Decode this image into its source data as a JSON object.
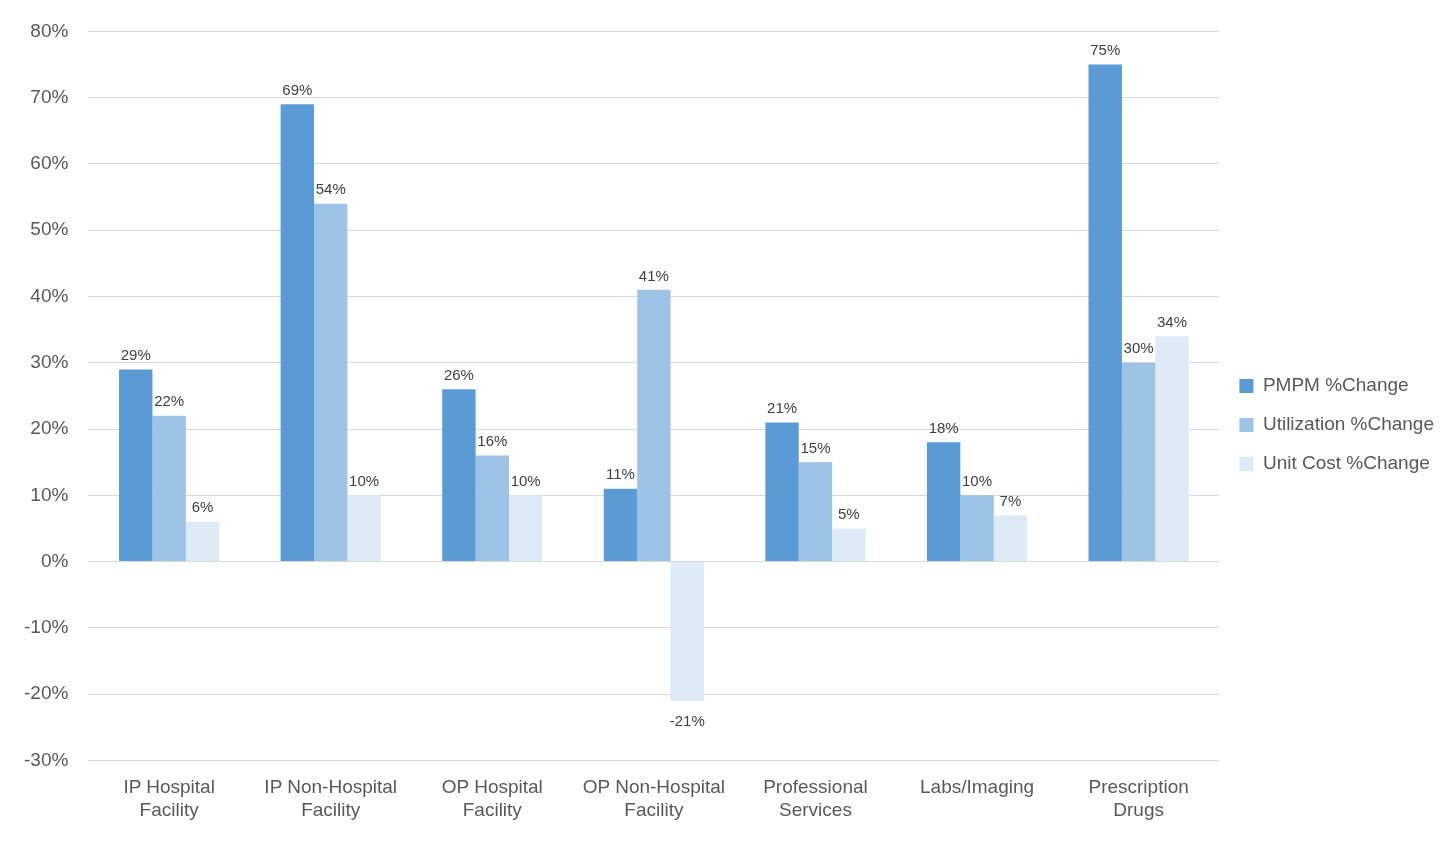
{
  "chart_data": {
    "type": "bar",
    "categories": [
      "IP Hospital Facility",
      "IP Non-Hospital Facility",
      "OP Hospital Facility",
      "OP Non-Hospital Facility",
      "Professional Services",
      "Labs/Imaging",
      "Prescription Drugs"
    ],
    "series": [
      {
        "name": "PMPM %Change",
        "color": "#5b9bd5",
        "values": [
          29,
          69,
          26,
          11,
          21,
          18,
          75
        ],
        "value_labels": [
          "29%",
          "69%",
          "26%",
          "11%",
          "21%",
          "18%",
          "75%"
        ]
      },
      {
        "name": "Utilization %Change",
        "color": "#9dc3e6",
        "values": [
          22,
          54,
          16,
          41,
          15,
          10,
          30
        ],
        "value_labels": [
          "22%",
          "54%",
          "16%",
          "41%",
          "15%",
          "10%",
          "30%"
        ]
      },
      {
        "name": "Unit Cost %Change",
        "color": "#deebf7",
        "values": [
          6,
          10,
          10,
          -21,
          5,
          7,
          34
        ],
        "value_labels": [
          "6%",
          "10%",
          "10%",
          "-21%",
          "5%",
          "7%",
          "34%"
        ]
      }
    ],
    "ylim": [
      -30,
      80
    ],
    "yticks": [
      {
        "value": -30,
        "label": "-30%"
      },
      {
        "value": -20,
        "label": "-20%"
      },
      {
        "value": -10,
        "label": "-10%"
      },
      {
        "value": 0,
        "label": "0%"
      },
      {
        "value": 10,
        "label": "10%"
      },
      {
        "value": 20,
        "label": "20%"
      },
      {
        "value": 30,
        "label": "30%"
      },
      {
        "value": 40,
        "label": "40%"
      },
      {
        "value": 50,
        "label": "50%"
      },
      {
        "value": 60,
        "label": "60%"
      },
      {
        "value": 70,
        "label": "70%"
      },
      {
        "value": 80,
        "label": "80%"
      }
    ],
    "grid": "y",
    "legend": "right"
  }
}
